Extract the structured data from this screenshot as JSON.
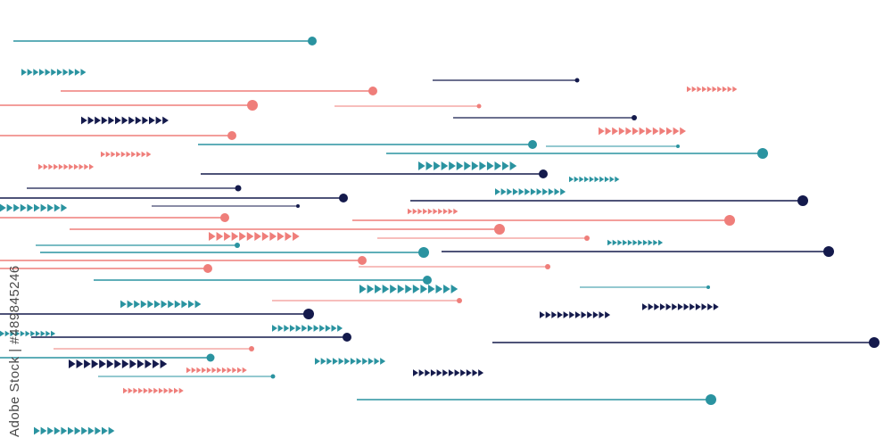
{
  "palette": {
    "teal": "#2a93a0",
    "coral": "#ef7e7a",
    "navy": "#141a4c"
  },
  "watermark": {
    "text": "Adobe Stock | #489845246"
  },
  "motif": {
    "line_ending": "circle-dot",
    "arrow_glyph": "triangle-right"
  }
}
